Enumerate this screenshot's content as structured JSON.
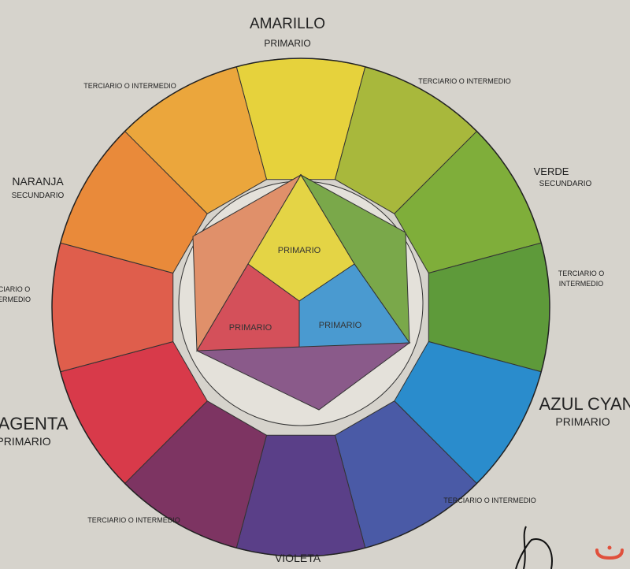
{
  "labels": {
    "amarillo": "AMARILLO",
    "amarillo_sub": "PRIMARIO",
    "verde": "VERDE",
    "verde_sub": "SECUNDARIO",
    "naranja": "NARANJA",
    "naranja_sub": "SECUNDARIO",
    "azul": "AZUL CYAN",
    "azul_sub": "PRIMARIO",
    "magenta": "AGENTA",
    "magenta_sub": "PRIMARIO",
    "violeta": "VIOLETA",
    "terciario_top_left": "TERCIARIO O INTERMEDIO",
    "terciario_top_right": "TERCIARIO O INTERMEDIO",
    "terciario_right_1": "TERCIARIO O",
    "terciario_right_2": "INTERMEDIO",
    "terciario_left_1": "CIARIO O",
    "terciario_left_2": "ERMEDIO",
    "terciario_bottom_left": "TERCIARIO O INTERMEDIO",
    "terciario_bottom_right": "TERCIARIO O INTERMEDIO",
    "center_yellow": "PRIMARIO",
    "center_red": "PRIMARIO",
    "center_blue": "PRIMARIO"
  },
  "wheel_colors": [
    "#e6d23c",
    "#a8b83c",
    "#7fae3a",
    "#5e9a3a",
    "#2a8ccc",
    "#4a5aa6",
    "#5a3f88",
    "#7d3462",
    "#d83a4a",
    "#df5e4c",
    "#e98a3a",
    "#eba63c"
  ],
  "center_colors": {
    "yellow": "#e4d445",
    "red": "#d4505a",
    "blue": "#4a9ad0",
    "violet": "#8a5a8a",
    "orange": "#e0906a",
    "green": "#7aa84a"
  },
  "watermark_color": "#e0503c"
}
